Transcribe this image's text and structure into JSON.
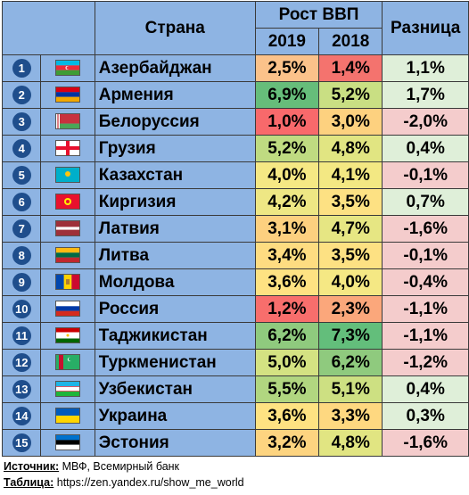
{
  "header": {
    "country": "Страна",
    "gdp_growth": "Рост ВВП",
    "year1": "2019",
    "year2": "2018",
    "difference": "Разница"
  },
  "rows": [
    {
      "n": "1",
      "country": "Азербайджан",
      "flag": "azerbaijan-flag-icon",
      "v2019": "2,5%",
      "v2018": "1,4%",
      "diff": "1,1%",
      "c2019": "#fbc28a",
      "c2018": "#f4736e"
    },
    {
      "n": "2",
      "country": "Армения",
      "flag": "armenia-flag-icon",
      "v2019": "6,9%",
      "v2018": "5,2%",
      "diff": "1,7%",
      "c2019": "#66bd7a",
      "c2018": "#c9df83"
    },
    {
      "n": "3",
      "country": "Белоруссия",
      "flag": "belarus-flag-icon",
      "v2019": "1,0%",
      "v2018": "3,0%",
      "diff": "-2,0%",
      "c2019": "#f8696b",
      "c2018": "#fdd17f"
    },
    {
      "n": "4",
      "country": "Грузия",
      "flag": "georgia-flag-icon",
      "v2019": "5,2%",
      "v2018": "4,8%",
      "diff": "0,4%",
      "c2019": "#bfdb81",
      "c2018": "#e1e582"
    },
    {
      "n": "5",
      "country": "Казахстан",
      "flag": "kazakhstan-flag-icon",
      "v2019": "4,0%",
      "v2018": "4,1%",
      "diff": "-0,1%",
      "c2019": "#f5e884",
      "c2018": "#f3e883"
    },
    {
      "n": "6",
      "country": "Киргизия",
      "flag": "kyrgyzstan-flag-icon",
      "v2019": "4,2%",
      "v2018": "3,5%",
      "diff": "0,7%",
      "c2019": "#eee784",
      "c2018": "#fde183"
    },
    {
      "n": "7",
      "country": "Латвия",
      "flag": "latvia-flag-icon",
      "v2019": "3,1%",
      "v2018": "4,7%",
      "diff": "-1,6%",
      "c2019": "#fdd07f",
      "c2018": "#e6e683"
    },
    {
      "n": "8",
      "country": "Литва",
      "flag": "lithuania-flag-icon",
      "v2019": "3,4%",
      "v2018": "3,5%",
      "diff": "-0,1%",
      "c2019": "#fedc81",
      "c2018": "#fde183"
    },
    {
      "n": "9",
      "country": "Молдова",
      "flag": "moldova-flag-icon",
      "v2019": "3,6%",
      "v2018": "4,0%",
      "diff": "-0,4%",
      "c2019": "#fee282",
      "c2018": "#f5e884"
    },
    {
      "n": "10",
      "country": "Россия",
      "flag": "russia-flag-icon",
      "v2019": "1,2%",
      "v2018": "2,3%",
      "diff": "-1,1%",
      "c2019": "#f86e6c",
      "c2018": "#fba77b"
    },
    {
      "n": "11",
      "country": "Таджикистан",
      "flag": "tajikistan-flag-icon",
      "v2019": "6,2%",
      "v2018": "7,3%",
      "diff": "-1,1%",
      "c2019": "#8fca7e",
      "c2018": "#63be7b"
    },
    {
      "n": "12",
      "country": "Туркменистан",
      "flag": "turkmenistan-flag-icon",
      "v2019": "5,0%",
      "v2018": "6,2%",
      "diff": "-1,2%",
      "c2019": "#d4e282",
      "c2018": "#8fca7e"
    },
    {
      "n": "13",
      "country": "Узбекистан",
      "flag": "uzbekistan-flag-icon",
      "v2019": "5,5%",
      "v2018": "5,1%",
      "diff": "0,4%",
      "c2019": "#b1d680",
      "c2018": "#cde082"
    },
    {
      "n": "14",
      "country": "Украина",
      "flag": "ukraine-flag-icon",
      "v2019": "3,6%",
      "v2018": "3,3%",
      "diff": "0,3%",
      "c2019": "#fee282",
      "c2018": "#fed880"
    },
    {
      "n": "15",
      "country": "Эстония",
      "flag": "estonia-flag-icon",
      "v2019": "3,2%",
      "v2018": "4,8%",
      "diff": "-1,6%",
      "c2019": "#fdd480",
      "c2018": "#e1e582"
    }
  ],
  "footer": {
    "source_label": "Источник:",
    "source_text": "МВФ, Всемирный банк",
    "table_label": "Таблица:",
    "table_text": "https://zen.yandex.ru/show_me_world"
  },
  "colors": {
    "header_blue": "#8eb4e3",
    "badge": "#1f4e8c",
    "diff_positive_text": "#1e7a1e",
    "diff_negative_text": "#c00000"
  }
}
